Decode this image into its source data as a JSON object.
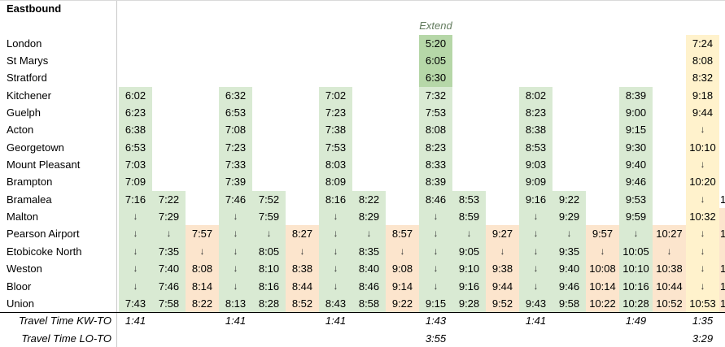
{
  "title": "Eastbound",
  "stations": [
    "London",
    "St Marys",
    "Stratford",
    "Kitchener",
    "Guelph",
    "Acton",
    "Georgetown",
    "Mount Pleasant",
    "Brampton",
    "Bramalea",
    "Malton",
    "Pearson Airport",
    "Etobicoke North",
    "Weston",
    "Bloor",
    "Union"
  ],
  "travel_time_rows": [
    {
      "label": "Travel Time KW-TO",
      "key": "kw_to"
    },
    {
      "label": "Travel Time LO-TO",
      "key": "lo_to"
    }
  ],
  "colors": {
    "trip_green": "#d9ead3",
    "trip_green_dark": "#b6d7a8",
    "trip_orange": "#fce5cd",
    "trip_yellow": "#fff2cc",
    "gridline": "#c9c9c9",
    "top_hairline": "#d9d9d9",
    "union_divider": "#000000",
    "extend_text": "#617a5c",
    "arrow": "#333333"
  },
  "trips": [
    {
      "color": "green",
      "times": [
        "",
        "",
        "",
        "6:02",
        "6:23",
        "6:38",
        "6:53",
        "7:03",
        "7:09",
        "7:16",
        "↓",
        "↓",
        "↓",
        "↓",
        "↓",
        "7:43"
      ],
      "kw_to": "1:41",
      "lo_to": ""
    },
    {
      "color": "green",
      "times": [
        "",
        "",
        "",
        "",
        "",
        "",
        "",
        "",
        "",
        "7:22",
        "7:29",
        "↓",
        "7:35",
        "7:40",
        "7:46",
        "7:58"
      ],
      "kw_to": "",
      "lo_to": ""
    },
    {
      "color": "orange",
      "times": [
        "",
        "",
        "",
        "",
        "",
        "",
        "",
        "",
        "",
        "",
        "",
        "7:57",
        "↓",
        "8:08",
        "8:14",
        "8:22"
      ],
      "kw_to": "",
      "lo_to": ""
    },
    {
      "color": "green",
      "times": [
        "",
        "",
        "",
        "6:32",
        "6:53",
        "7:08",
        "7:23",
        "7:33",
        "7:39",
        "7:46",
        "↓",
        "↓",
        "↓",
        "↓",
        "↓",
        "8:13"
      ],
      "kw_to": "1:41",
      "lo_to": ""
    },
    {
      "color": "green",
      "times": [
        "",
        "",
        "",
        "",
        "",
        "",
        "",
        "",
        "",
        "7:52",
        "7:59",
        "↓",
        "8:05",
        "8:10",
        "8:16",
        "8:28"
      ],
      "kw_to": "",
      "lo_to": ""
    },
    {
      "color": "orange",
      "times": [
        "",
        "",
        "",
        "",
        "",
        "",
        "",
        "",
        "",
        "",
        "",
        "8:27",
        "↓",
        "8:38",
        "8:44",
        "8:52"
      ],
      "kw_to": "",
      "lo_to": ""
    },
    {
      "color": "green",
      "times": [
        "",
        "",
        "",
        "7:02",
        "7:23",
        "7:38",
        "7:53",
        "8:03",
        "8:09",
        "8:16",
        "↓",
        "↓",
        "↓",
        "↓",
        "↓",
        "8:43"
      ],
      "kw_to": "1:41",
      "lo_to": ""
    },
    {
      "color": "green",
      "times": [
        "",
        "",
        "",
        "",
        "",
        "",
        "",
        "",
        "",
        "8:22",
        "8:29",
        "↓",
        "8:35",
        "8:40",
        "8:46",
        "8:58"
      ],
      "kw_to": "",
      "lo_to": ""
    },
    {
      "color": "orange",
      "times": [
        "",
        "",
        "",
        "",
        "",
        "",
        "",
        "",
        "",
        "",
        "",
        "8:57",
        "↓",
        "9:08",
        "9:14",
        "9:22"
      ],
      "kw_to": "",
      "lo_to": ""
    },
    {
      "color": "green",
      "label": "Extend",
      "dark_rows": [
        0,
        1,
        2
      ],
      "times": [
        "5:20",
        "6:05",
        "6:30",
        "7:32",
        "7:53",
        "8:08",
        "8:23",
        "8:33",
        "8:39",
        "8:46",
        "↓",
        "↓",
        "↓",
        "↓",
        "↓",
        "9:15"
      ],
      "kw_to": "1:43",
      "lo_to": "3:55"
    },
    {
      "color": "green",
      "times": [
        "",
        "",
        "",
        "",
        "",
        "",
        "",
        "",
        "",
        "8:53",
        "8:59",
        "↓",
        "9:05",
        "9:10",
        "9:16",
        "9:28"
      ],
      "kw_to": "",
      "lo_to": ""
    },
    {
      "color": "orange",
      "times": [
        "",
        "",
        "",
        "",
        "",
        "",
        "",
        "",
        "",
        "",
        "",
        "9:27",
        "↓",
        "9:38",
        "9:44",
        "9:52"
      ],
      "kw_to": "",
      "lo_to": ""
    },
    {
      "color": "green",
      "times": [
        "",
        "",
        "",
        "8:02",
        "8:23",
        "8:38",
        "8:53",
        "9:03",
        "9:09",
        "9:16",
        "↓",
        "↓",
        "↓",
        "↓",
        "↓",
        "9:43"
      ],
      "kw_to": "1:41",
      "lo_to": ""
    },
    {
      "color": "green",
      "times": [
        "",
        "",
        "",
        "",
        "",
        "",
        "",
        "",
        "",
        "9:22",
        "9:29",
        "↓",
        "9:35",
        "9:40",
        "9:46",
        "9:58"
      ],
      "kw_to": "",
      "lo_to": ""
    },
    {
      "color": "orange",
      "times": [
        "",
        "",
        "",
        "",
        "",
        "",
        "",
        "",
        "",
        "",
        "",
        "9:57",
        "↓",
        "10:08",
        "10:14",
        "10:22"
      ],
      "kw_to": "",
      "lo_to": ""
    },
    {
      "color": "green",
      "times": [
        "",
        "",
        "",
        "8:39",
        "9:00",
        "9:15",
        "9:30",
        "9:40",
        "9:46",
        "9:53",
        "9:59",
        "↓",
        "10:05",
        "10:10",
        "10:16",
        "10:28"
      ],
      "kw_to": "1:49",
      "lo_to": ""
    },
    {
      "color": "orange",
      "times": [
        "",
        "",
        "",
        "",
        "",
        "",
        "",
        "",
        "",
        "",
        "",
        "10:27",
        "↓",
        "10:38",
        "10:44",
        "10:52"
      ],
      "kw_to": "",
      "lo_to": ""
    },
    {
      "color": "yellow",
      "times": [
        "7:24",
        "8:08",
        "8:32",
        "9:18",
        "9:44",
        "↓",
        "10:10",
        "↓",
        "10:20",
        "↓",
        "10:32",
        "↓",
        "↓",
        "↓",
        "↓",
        "10:53"
      ],
      "kw_to": "1:35",
      "lo_to": "3:29"
    }
  ],
  "cutoff_column": {
    "color": "orange",
    "bg_from_station_index": 10,
    "partials": [
      {
        "station_index": 9,
        "text": "1"
      },
      {
        "station_index": 11,
        "text": "1"
      },
      {
        "station_index": 13,
        "text": "1"
      },
      {
        "station_index": 14,
        "text": "1"
      },
      {
        "station_index": 15,
        "text": "1"
      }
    ]
  }
}
